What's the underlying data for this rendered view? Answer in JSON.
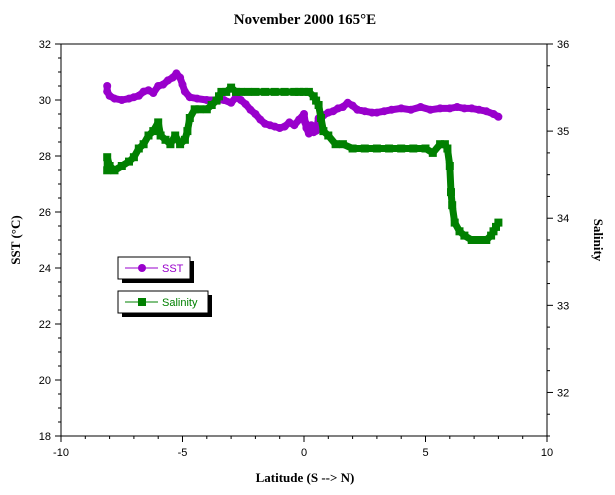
{
  "chart_data": {
    "type": "line",
    "title": "November 2000 165°E",
    "xlabel": "Latitude (S --> N)",
    "ylabel": "SST (°C)",
    "y2label": "Salinity",
    "xlim": [
      -10,
      10
    ],
    "ylim": [
      18,
      32
    ],
    "y2lim": [
      31.5,
      36
    ],
    "xticks": [
      "-10",
      "-5",
      "0",
      "5",
      "10"
    ],
    "yticks": [
      "18",
      "20",
      "22",
      "24",
      "26",
      "28",
      "30",
      "32"
    ],
    "y2ticks": [
      "32",
      "33",
      "34",
      "35",
      "36"
    ],
    "grid": false,
    "legend_placement": "middle-left",
    "series": [
      {
        "name": "SST",
        "axis": "left",
        "color": "#9900cc",
        "marker": "circle",
        "points": [
          [
            -8.1,
            30.5
          ],
          [
            -8.1,
            30.3
          ],
          [
            -8.0,
            30.15
          ],
          [
            -7.8,
            30.05
          ],
          [
            -7.5,
            30.0
          ],
          [
            -7.2,
            30.05
          ],
          [
            -7.0,
            30.1
          ],
          [
            -6.8,
            30.15
          ],
          [
            -6.6,
            30.3
          ],
          [
            -6.4,
            30.35
          ],
          [
            -6.2,
            30.25
          ],
          [
            -6.0,
            30.5
          ],
          [
            -5.8,
            30.55
          ],
          [
            -5.6,
            30.7
          ],
          [
            -5.4,
            30.8
          ],
          [
            -5.25,
            30.95
          ],
          [
            -5.1,
            30.8
          ],
          [
            -5.0,
            30.55
          ],
          [
            -4.9,
            30.3
          ],
          [
            -4.7,
            30.1
          ],
          [
            -4.4,
            30.05
          ],
          [
            -4.0,
            30.0
          ],
          [
            -3.6,
            30.0
          ],
          [
            -3.3,
            30.0
          ],
          [
            -3.0,
            29.9
          ],
          [
            -2.8,
            30.1
          ],
          [
            -2.6,
            30.0
          ],
          [
            -2.4,
            29.85
          ],
          [
            -2.2,
            29.65
          ],
          [
            -2.0,
            29.5
          ],
          [
            -1.8,
            29.3
          ],
          [
            -1.6,
            29.15
          ],
          [
            -1.4,
            29.1
          ],
          [
            -1.2,
            29.05
          ],
          [
            -1.0,
            29.0
          ],
          [
            -0.8,
            29.05
          ],
          [
            -0.6,
            29.2
          ],
          [
            -0.4,
            29.1
          ],
          [
            -0.2,
            29.3
          ],
          [
            0.0,
            29.5
          ],
          [
            0.05,
            29.2
          ],
          [
            0.1,
            29.0
          ],
          [
            0.2,
            28.8
          ],
          [
            0.3,
            29.1
          ],
          [
            0.4,
            28.85
          ],
          [
            0.5,
            28.9
          ],
          [
            0.6,
            29.35
          ],
          [
            0.8,
            29.45
          ],
          [
            1.0,
            29.55
          ],
          [
            1.2,
            29.6
          ],
          [
            1.4,
            29.7
          ],
          [
            1.6,
            29.75
          ],
          [
            1.8,
            29.9
          ],
          [
            2.0,
            29.8
          ],
          [
            2.2,
            29.65
          ],
          [
            2.5,
            29.6
          ],
          [
            2.8,
            29.55
          ],
          [
            3.0,
            29.55
          ],
          [
            3.3,
            29.6
          ],
          [
            3.6,
            29.65
          ],
          [
            4.0,
            29.7
          ],
          [
            4.4,
            29.65
          ],
          [
            4.8,
            29.75
          ],
          [
            5.2,
            29.65
          ],
          [
            5.6,
            29.7
          ],
          [
            6.0,
            29.7
          ],
          [
            6.3,
            29.75
          ],
          [
            6.6,
            29.7
          ],
          [
            6.9,
            29.7
          ],
          [
            7.2,
            29.65
          ],
          [
            7.5,
            29.6
          ],
          [
            7.8,
            29.5
          ],
          [
            8.0,
            29.4
          ]
        ]
      },
      {
        "name": "Salinity",
        "axis": "right",
        "color": "#008000",
        "marker": "square",
        "points": [
          [
            -8.1,
            34.55
          ],
          [
            -8.1,
            34.7
          ],
          [
            -8.0,
            34.6
          ],
          [
            -7.8,
            34.55
          ],
          [
            -7.5,
            34.6
          ],
          [
            -7.2,
            34.65
          ],
          [
            -7.0,
            34.7
          ],
          [
            -6.8,
            34.8
          ],
          [
            -6.6,
            34.85
          ],
          [
            -6.4,
            34.95
          ],
          [
            -6.2,
            35.0
          ],
          [
            -6.0,
            35.1
          ],
          [
            -5.9,
            34.95
          ],
          [
            -5.7,
            34.9
          ],
          [
            -5.5,
            34.85
          ],
          [
            -5.3,
            34.95
          ],
          [
            -5.1,
            34.85
          ],
          [
            -4.9,
            34.9
          ],
          [
            -4.8,
            35.0
          ],
          [
            -4.7,
            35.15
          ],
          [
            -4.5,
            35.25
          ],
          [
            -4.3,
            35.25
          ],
          [
            -4.0,
            35.25
          ],
          [
            -3.8,
            35.3
          ],
          [
            -3.6,
            35.35
          ],
          [
            -3.5,
            35.4
          ],
          [
            -3.4,
            35.45
          ],
          [
            -3.2,
            35.45
          ],
          [
            -3.0,
            35.5
          ],
          [
            -2.8,
            35.45
          ],
          [
            -2.6,
            35.45
          ],
          [
            -2.3,
            35.45
          ],
          [
            -2.0,
            35.45
          ],
          [
            -1.6,
            35.45
          ],
          [
            -1.2,
            35.45
          ],
          [
            -0.8,
            35.45
          ],
          [
            -0.4,
            35.45
          ],
          [
            -0.2,
            35.45
          ],
          [
            0.0,
            35.45
          ],
          [
            0.2,
            35.45
          ],
          [
            0.4,
            35.4
          ],
          [
            0.5,
            35.35
          ],
          [
            0.6,
            35.3
          ],
          [
            0.7,
            35.15
          ],
          [
            0.8,
            35.0
          ],
          [
            1.0,
            34.95
          ],
          [
            1.3,
            34.85
          ],
          [
            1.6,
            34.85
          ],
          [
            2.0,
            34.8
          ],
          [
            2.5,
            34.8
          ],
          [
            3.0,
            34.8
          ],
          [
            3.5,
            34.8
          ],
          [
            4.0,
            34.8
          ],
          [
            4.5,
            34.8
          ],
          [
            5.0,
            34.8
          ],
          [
            5.3,
            34.75
          ],
          [
            5.6,
            34.85
          ],
          [
            5.8,
            34.85
          ],
          [
            5.9,
            34.8
          ],
          [
            6.0,
            34.6
          ],
          [
            6.05,
            34.3
          ],
          [
            6.1,
            34.15
          ],
          [
            6.2,
            33.95
          ],
          [
            6.4,
            33.85
          ],
          [
            6.6,
            33.8
          ],
          [
            6.9,
            33.75
          ],
          [
            7.2,
            33.75
          ],
          [
            7.5,
            33.75
          ],
          [
            7.7,
            33.8
          ],
          [
            7.8,
            33.85
          ],
          [
            7.9,
            33.9
          ],
          [
            8.0,
            33.95
          ]
        ]
      }
    ]
  }
}
